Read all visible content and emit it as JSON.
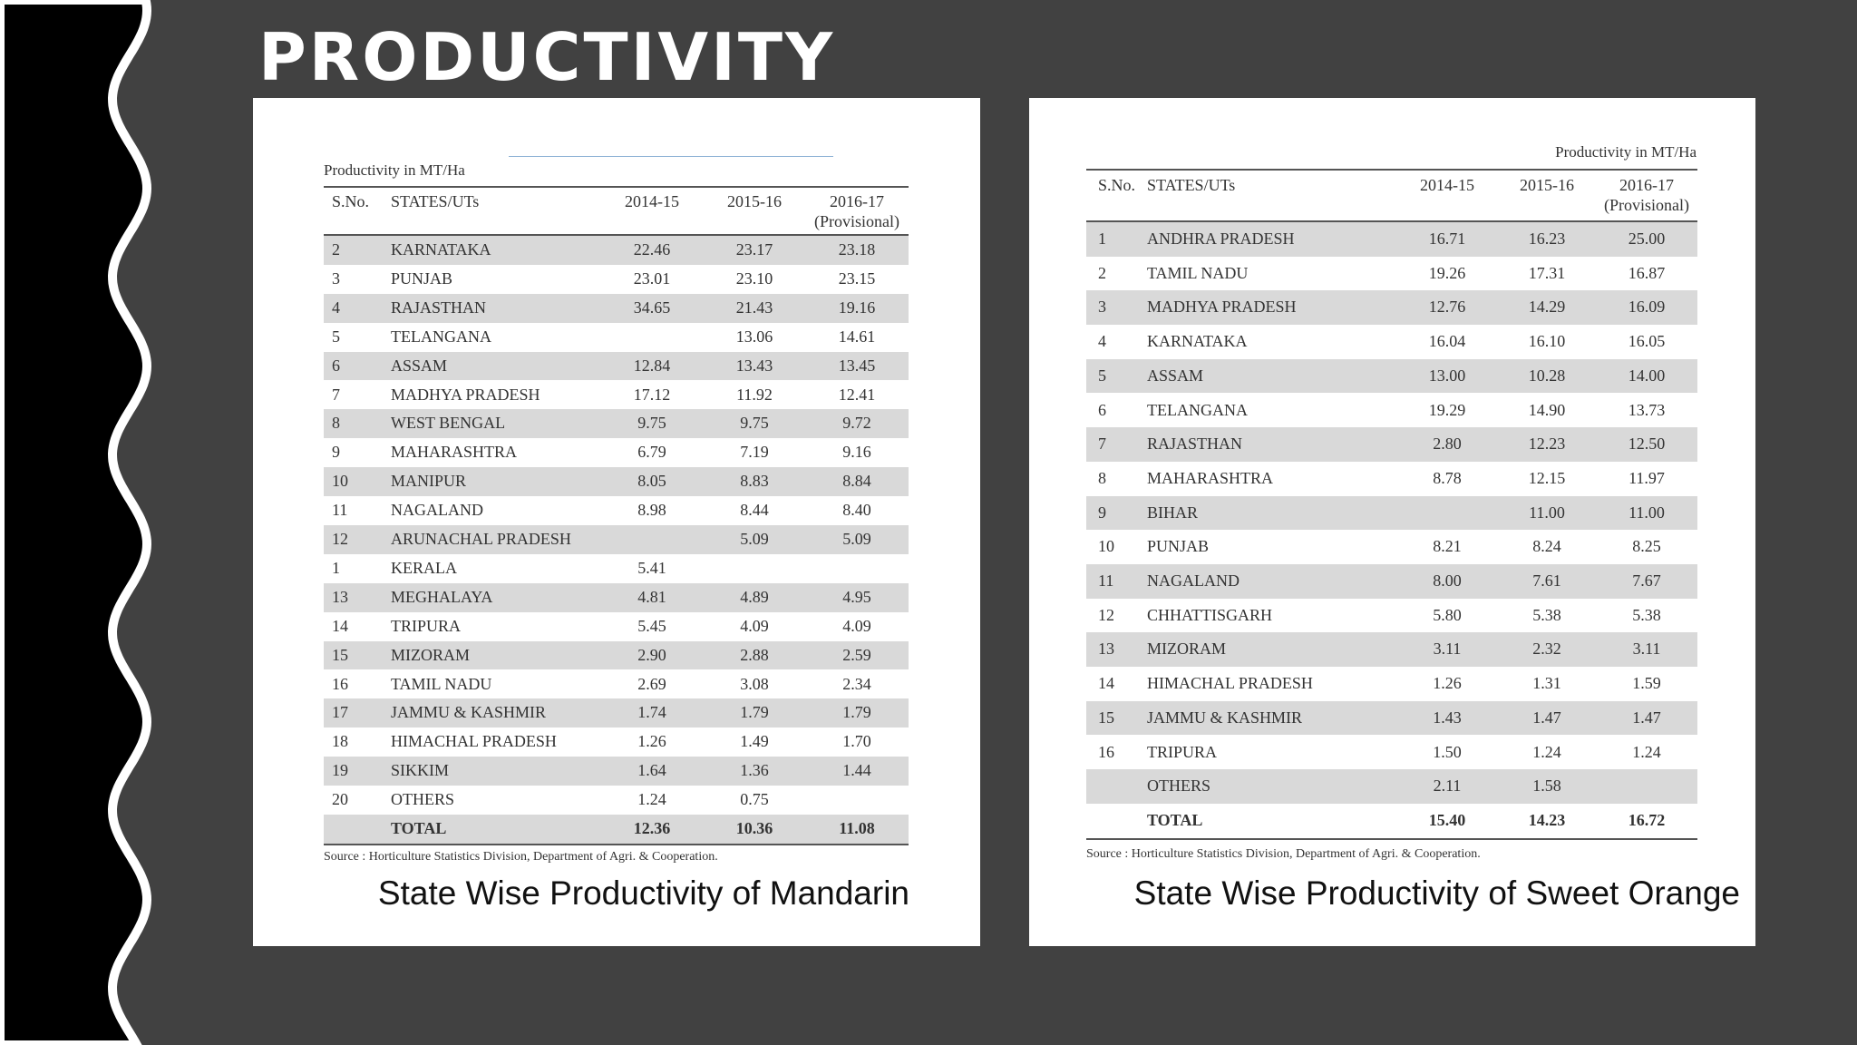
{
  "title": "PRODUCTIVITY",
  "tables": [
    {
      "unit": "Productivity in MT/Ha",
      "headers": [
        [
          "S.No."
        ],
        [
          "STATES/UTs"
        ],
        [
          "2014-15"
        ],
        [
          "2015-16"
        ],
        [
          "2016-17",
          "(Provisional)"
        ]
      ],
      "rows": [
        [
          "2",
          "KARNATAKA",
          "22.46",
          "23.17",
          "23.18"
        ],
        [
          "3",
          "PUNJAB",
          "23.01",
          "23.10",
          "23.15"
        ],
        [
          "4",
          "RAJASTHAN",
          "34.65",
          "21.43",
          "19.16"
        ],
        [
          "5",
          "TELANGANA",
          null,
          "13.06",
          "14.61"
        ],
        [
          "6",
          "ASSAM",
          "12.84",
          "13.43",
          "13.45"
        ],
        [
          "7",
          "MADHYA PRADESH",
          "17.12",
          "11.92",
          "12.41"
        ],
        [
          "8",
          "WEST BENGAL",
          "9.75",
          "9.75",
          "9.72"
        ],
        [
          "9",
          "MAHARASHTRA",
          "6.79",
          "7.19",
          "9.16"
        ],
        [
          "10",
          "MANIPUR",
          "8.05",
          "8.83",
          "8.84"
        ],
        [
          "11",
          "NAGALAND",
          "8.98",
          "8.44",
          "8.40"
        ],
        [
          "12",
          "ARUNACHAL PRADESH",
          null,
          "5.09",
          "5.09"
        ],
        [
          "1",
          "KERALA",
          "5.41",
          null,
          null
        ],
        [
          "13",
          "MEGHALAYA",
          "4.81",
          "4.89",
          "4.95"
        ],
        [
          "14",
          "TRIPURA",
          "5.45",
          "4.09",
          "4.09"
        ],
        [
          "15",
          "MIZORAM",
          "2.90",
          "2.88",
          "2.59"
        ],
        [
          "16",
          "TAMIL NADU",
          "2.69",
          "3.08",
          "2.34"
        ],
        [
          "17",
          "JAMMU & KASHMIR",
          "1.74",
          "1.79",
          "1.79"
        ],
        [
          "18",
          "HIMACHAL PRADESH",
          "1.26",
          "1.49",
          "1.70"
        ],
        [
          "19",
          "SIKKIM",
          "1.64",
          "1.36",
          "1.44"
        ],
        [
          "20",
          "OTHERS",
          "1.24",
          "0.75",
          null
        ],
        [
          null,
          "TOTAL",
          "12.36",
          "10.36",
          "11.08"
        ]
      ],
      "source": "Source : Horticulture Statistics Division, Department of Agri. & Cooperation.",
      "caption": "State Wise Productivity of Mandarin"
    },
    {
      "unit": "Productivity in MT/Ha",
      "headers": [
        [
          "S.No."
        ],
        [
          "STATES/UTs"
        ],
        [
          "2014-15"
        ],
        [
          "2015-16"
        ],
        [
          "2016-17",
          "(Provisional)"
        ]
      ],
      "rows": [
        [
          "1",
          "ANDHRA PRADESH",
          "16.71",
          "16.23",
          "25.00"
        ],
        [
          "2",
          "TAMIL NADU",
          "19.26",
          "17.31",
          "16.87"
        ],
        [
          "3",
          "MADHYA PRADESH",
          "12.76",
          "14.29",
          "16.09"
        ],
        [
          "4",
          "KARNATAKA",
          "16.04",
          "16.10",
          "16.05"
        ],
        [
          "5",
          "ASSAM",
          "13.00",
          "10.28",
          "14.00"
        ],
        [
          "6",
          "TELANGANA",
          "19.29",
          "14.90",
          "13.73"
        ],
        [
          "7",
          "RAJASTHAN",
          "2.80",
          "12.23",
          "12.50"
        ],
        [
          "8",
          "MAHARASHTRA",
          "8.78",
          "12.15",
          "11.97"
        ],
        [
          "9",
          "BIHAR",
          null,
          "11.00",
          "11.00"
        ],
        [
          "10",
          "PUNJAB",
          "8.21",
          "8.24",
          "8.25"
        ],
        [
          "11",
          "NAGALAND",
          "8.00",
          "7.61",
          "7.67"
        ],
        [
          "12",
          "CHHATTISGARH",
          "5.80",
          "5.38",
          "5.38"
        ],
        [
          "13",
          "MIZORAM",
          "3.11",
          "2.32",
          "3.11"
        ],
        [
          "14",
          "HIMACHAL PRADESH",
          "1.26",
          "1.31",
          "1.59"
        ],
        [
          "15",
          "JAMMU & KASHMIR",
          "1.43",
          "1.47",
          "1.47"
        ],
        [
          "16",
          "TRIPURA",
          "1.50",
          "1.24",
          "1.24"
        ],
        [
          null,
          "OTHERS",
          "2.11",
          "1.58",
          null
        ],
        [
          null,
          "TOTAL",
          "15.40",
          "14.23",
          "16.72"
        ]
      ],
      "source": "Source : Horticulture Statistics Division, Department of Agri. & Cooperation.",
      "caption": "State Wise Productivity of Sweet Orange"
    }
  ]
}
